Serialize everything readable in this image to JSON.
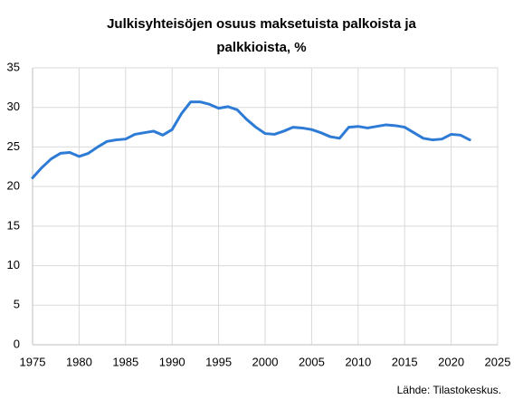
{
  "chart_data": {
    "type": "line",
    "title": "Julkisyhteisöjen osuus maksetuista palkoista ja palkkioista, %",
    "source": "Lähde: Tilastokeskus.",
    "x": [
      1975,
      1976,
      1977,
      1978,
      1979,
      1980,
      1981,
      1982,
      1983,
      1984,
      1985,
      1986,
      1987,
      1988,
      1989,
      1990,
      1991,
      1992,
      1993,
      1994,
      1995,
      1996,
      1997,
      1998,
      1999,
      2000,
      2001,
      2002,
      2003,
      2004,
      2005,
      2006,
      2007,
      2008,
      2009,
      2010,
      2011,
      2012,
      2013,
      2014,
      2015,
      2016,
      2017,
      2018,
      2019,
      2020,
      2021,
      2022
    ],
    "values": [
      21.1,
      22.4,
      23.5,
      24.2,
      24.3,
      23.8,
      24.2,
      25.0,
      25.7,
      25.9,
      26.0,
      26.6,
      26.8,
      27.0,
      26.5,
      27.2,
      29.2,
      30.7,
      30.7,
      30.4,
      29.9,
      30.1,
      29.7,
      28.5,
      27.5,
      26.7,
      26.6,
      27.0,
      27.5,
      27.4,
      27.2,
      26.8,
      26.3,
      26.1,
      27.5,
      27.6,
      27.4,
      27.6,
      27.8,
      27.7,
      27.5,
      26.8,
      26.1,
      25.9,
      26.0,
      26.6,
      26.5,
      25.9
    ],
    "color": "#2e7bd6",
    "xlim": [
      1975,
      2025
    ],
    "xticks": [
      1975,
      1980,
      1985,
      1990,
      1995,
      2000,
      2005,
      2010,
      2015,
      2020,
      2025
    ],
    "ylim": [
      0,
      35
    ],
    "yticks": [
      0,
      5,
      10,
      15,
      20,
      25,
      30,
      35
    ],
    "grid": true
  }
}
